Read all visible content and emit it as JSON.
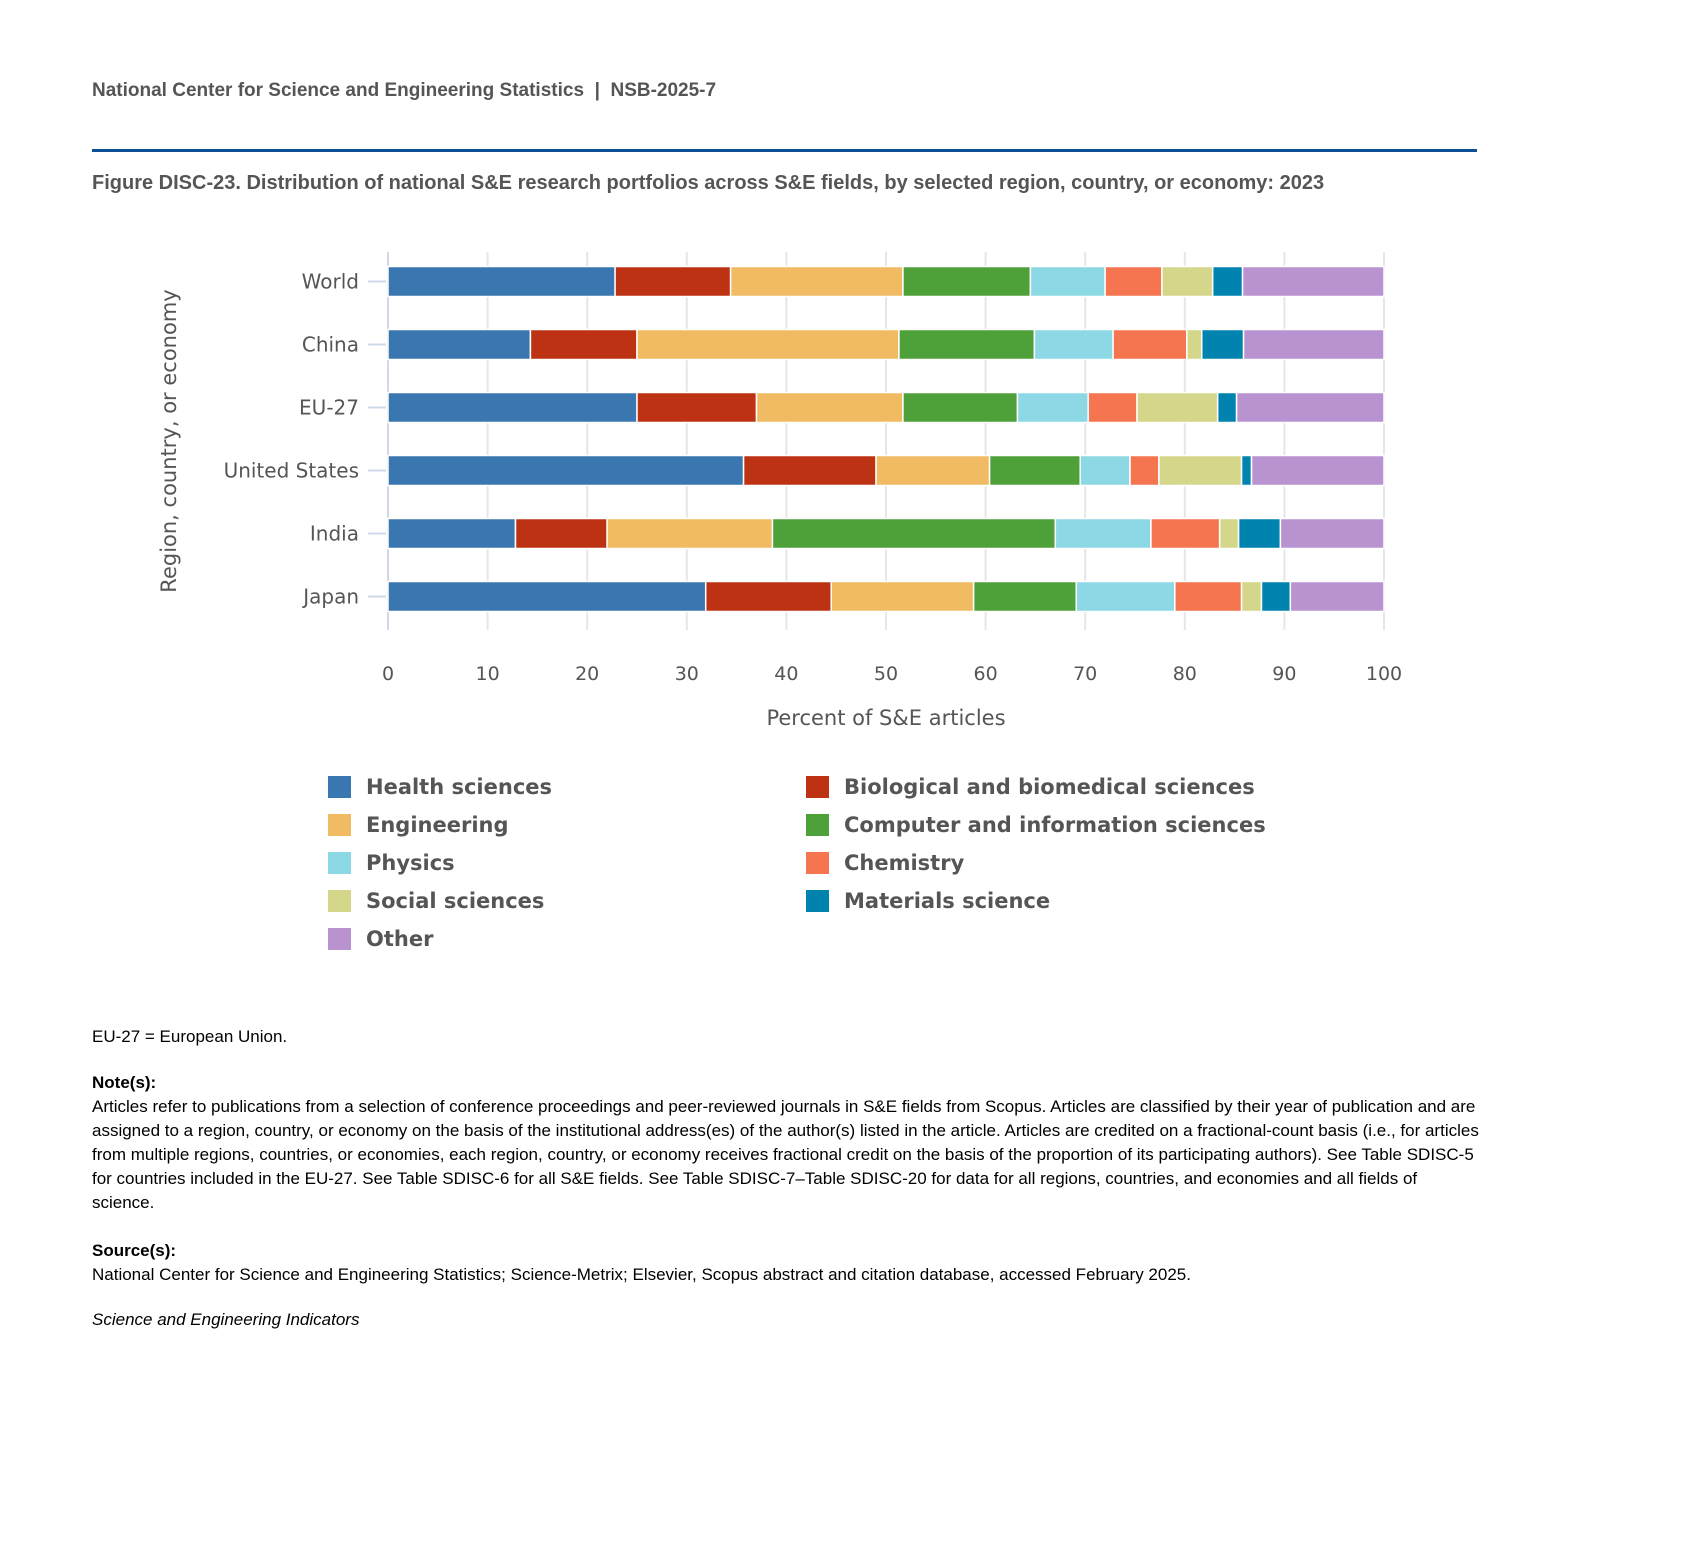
{
  "header": {
    "org": "National Center for Science and Engineering Statistics",
    "separator": "|",
    "report": "NSB-2025-7"
  },
  "figure_title": "Figure DISC-23. Distribution of national S&E research portfolios across S&E fields, by selected region, country, or economy: 2023",
  "chart_data": {
    "type": "bar",
    "orientation": "horizontal",
    "stacked": true,
    "title": "",
    "xlabel": "Percent of S&E articles",
    "ylabel": "Region, country, or economy",
    "xlim": [
      0,
      100
    ],
    "xticks": [
      0,
      10,
      20,
      30,
      40,
      50,
      60,
      70,
      80,
      90,
      100
    ],
    "grid": true,
    "legend_position": "bottom",
    "categories": [
      "World",
      "China",
      "EU-27",
      "United States",
      "India",
      "Japan"
    ],
    "series": [
      {
        "name": "Health sciences",
        "color": "#3a76af",
        "values": [
          22.8,
          14.3,
          25.0,
          35.7,
          12.8,
          31.9
        ]
      },
      {
        "name": "Biological and biomedical sciences",
        "color": "#be3214",
        "values": [
          11.6,
          10.7,
          12.0,
          13.3,
          9.2,
          12.6
        ]
      },
      {
        "name": "Engineering",
        "color": "#f1bb63",
        "values": [
          17.3,
          26.3,
          14.7,
          11.4,
          16.6,
          14.3
        ]
      },
      {
        "name": "Computer and information sciences",
        "color": "#4ea039",
        "values": [
          12.8,
          13.6,
          11.5,
          9.1,
          28.4,
          10.3
        ]
      },
      {
        "name": "Physics",
        "color": "#8cd8e4",
        "values": [
          7.5,
          7.9,
          7.1,
          5.0,
          9.6,
          9.9
        ]
      },
      {
        "name": "Chemistry",
        "color": "#f47550",
        "values": [
          5.7,
          7.4,
          4.9,
          2.9,
          6.9,
          6.7
        ]
      },
      {
        "name": "Social sciences",
        "color": "#d4d689",
        "values": [
          5.1,
          1.5,
          8.1,
          8.3,
          1.9,
          2.0
        ]
      },
      {
        "name": "Materials science",
        "color": "#0083ae",
        "values": [
          3.0,
          4.2,
          1.9,
          1.0,
          4.2,
          2.9
        ]
      },
      {
        "name": "Other",
        "color": "#b893d0",
        "values": [
          14.2,
          14.1,
          14.8,
          13.3,
          10.4,
          9.4
        ]
      }
    ]
  },
  "footer": {
    "abbrev": "EU-27 = European Union.",
    "notes_label": "Note(s):",
    "notes": "Articles refer to publications from a selection of conference proceedings and peer-reviewed journals in S&E fields from Scopus. Articles are classified by their year of publication and are assigned to a region, country, or economy on the basis of the institutional address(es) of the author(s) listed in the article. Articles are credited on a fractional-count basis (i.e., for articles from multiple regions, countries, or economies, each region, country, or economy receives fractional credit on the basis of the proportion of its participating authors). See Table SDISC-5 for countries included in the EU-27. See Table SDISC-6 for all S&E fields. See Table SDISC-7–Table SDISC-20 for data for all regions, countries, and economies and all fields of science.",
    "source_label": "Source(s):",
    "source": "National Center for Science and Engineering Statistics; Science-Metrix; Elsevier, Scopus abstract and citation database, accessed February 2025.",
    "publication": "Science and Engineering Indicators"
  }
}
